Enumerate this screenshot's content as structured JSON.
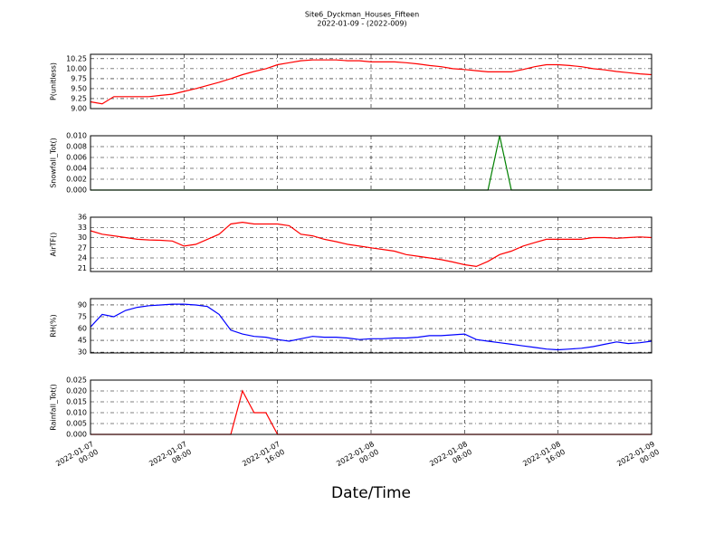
{
  "figure": {
    "title": "Site6_Dyckman_Houses_Fifteen",
    "subtitle": "2022-01-09 - (2022-009)",
    "xlabel": "Date/Time"
  },
  "chart_data": [
    {
      "type": "line",
      "ylabel": "P(unitless)",
      "color": "#ff0000",
      "grid": true,
      "xlim": [
        "2022-01-07 00:00",
        "2022-01-09 00:00"
      ],
      "ylim": [
        9.0,
        10.36
      ],
      "xticks": [
        {
          "value": "2022-01-07 00:00",
          "label": "2022-01-07\n00:00"
        },
        {
          "value": "2022-01-07 08:00",
          "label": "2022-01-07\n08:00"
        },
        {
          "value": "2022-01-07 16:00",
          "label": "2022-01-07\n16:00"
        },
        {
          "value": "2022-01-08 00:00",
          "label": "2022-01-08\n00:00"
        },
        {
          "value": "2022-01-08 08:00",
          "label": "2022-01-08\n08:00"
        },
        {
          "value": "2022-01-08 16:00",
          "label": "2022-01-08\n16:00"
        },
        {
          "value": "2022-01-09 00:00",
          "label": "2022-01-09\n00:00"
        }
      ],
      "yticks": [
        {
          "value": 9,
          "label": "9.00"
        },
        9.25,
        {
          "value": 9.5,
          "label": "9.50"
        },
        9.75,
        {
          "value": 10,
          "label": "10.00"
        },
        10.25
      ],
      "x": [
        "2022-01-07 00:00",
        "2022-01-07 01:00",
        "2022-01-07 02:00",
        "2022-01-07 03:00",
        "2022-01-07 04:00",
        "2022-01-07 05:00",
        "2022-01-07 06:00",
        "2022-01-07 07:00",
        "2022-01-07 08:00",
        "2022-01-07 09:00",
        "2022-01-07 10:00",
        "2022-01-07 11:00",
        "2022-01-07 12:00",
        "2022-01-07 13:00",
        "2022-01-07 14:00",
        "2022-01-07 15:00",
        "2022-01-07 16:00",
        "2022-01-07 17:00",
        "2022-01-07 18:00",
        "2022-01-07 19:00",
        "2022-01-07 20:00",
        "2022-01-07 21:00",
        "2022-01-07 22:00",
        "2022-01-07 23:00",
        "2022-01-08 00:00",
        "2022-01-08 01:00",
        "2022-01-08 02:00",
        "2022-01-08 03:00",
        "2022-01-08 04:00",
        "2022-01-08 05:00",
        "2022-01-08 06:00",
        "2022-01-08 07:00",
        "2022-01-08 08:00",
        "2022-01-08 09:00",
        "2022-01-08 10:00",
        "2022-01-08 11:00",
        "2022-01-08 12:00",
        "2022-01-08 13:00",
        "2022-01-08 14:00",
        "2022-01-08 15:00",
        "2022-01-08 16:00",
        "2022-01-08 17:00",
        "2022-01-08 18:00",
        "2022-01-08 19:00",
        "2022-01-08 20:00",
        "2022-01-08 21:00",
        "2022-01-08 22:00",
        "2022-01-08 23:00",
        "2022-01-09 00:00"
      ],
      "values": [
        9.17,
        9.12,
        9.3,
        9.3,
        9.3,
        9.3,
        9.33,
        9.36,
        9.43,
        9.5,
        9.58,
        9.66,
        9.75,
        9.85,
        9.93,
        10.0,
        10.1,
        10.15,
        10.2,
        10.22,
        10.22,
        10.22,
        10.2,
        10.2,
        10.17,
        10.17,
        10.17,
        10.15,
        10.12,
        10.08,
        10.05,
        10.0,
        9.98,
        9.95,
        9.92,
        9.92,
        9.92,
        9.98,
        10.05,
        10.1,
        10.1,
        10.08,
        10.05,
        10.0,
        9.97,
        9.93,
        9.9,
        9.87,
        9.85
      ]
    },
    {
      "type": "line",
      "ylabel": "Snowfall_Tot()",
      "color": "#008000",
      "grid": true,
      "xlim": [
        "2022-01-07 00:00",
        "2022-01-09 00:00"
      ],
      "ylim": [
        0,
        0.01
      ],
      "xticks": [
        {
          "value": "2022-01-07 00:00",
          "label": "2022-01-07\n00:00"
        },
        {
          "value": "2022-01-07 08:00",
          "label": "2022-01-07\n08:00"
        },
        {
          "value": "2022-01-07 16:00",
          "label": "2022-01-07\n16:00"
        },
        {
          "value": "2022-01-08 00:00",
          "label": "2022-01-08\n00:00"
        },
        {
          "value": "2022-01-08 08:00",
          "label": "2022-01-08\n08:00"
        },
        {
          "value": "2022-01-08 16:00",
          "label": "2022-01-08\n16:00"
        },
        {
          "value": "2022-01-09 00:00",
          "label": "2022-01-09\n00:00"
        }
      ],
      "yticks": [
        {
          "value": 0,
          "label": "0.000"
        },
        0.002,
        0.004,
        0.006,
        0.008,
        {
          "value": 0.01,
          "label": "0.010"
        }
      ],
      "x": [
        "2022-01-07 00:00",
        "2022-01-07 01:00",
        "2022-01-07 02:00",
        "2022-01-07 03:00",
        "2022-01-07 04:00",
        "2022-01-07 05:00",
        "2022-01-07 06:00",
        "2022-01-07 07:00",
        "2022-01-07 08:00",
        "2022-01-07 09:00",
        "2022-01-07 10:00",
        "2022-01-07 11:00",
        "2022-01-07 12:00",
        "2022-01-07 13:00",
        "2022-01-07 14:00",
        "2022-01-07 15:00",
        "2022-01-07 16:00",
        "2022-01-07 17:00",
        "2022-01-07 18:00",
        "2022-01-07 19:00",
        "2022-01-07 20:00",
        "2022-01-07 21:00",
        "2022-01-07 22:00",
        "2022-01-07 23:00",
        "2022-01-08 00:00",
        "2022-01-08 01:00",
        "2022-01-08 02:00",
        "2022-01-08 03:00",
        "2022-01-08 04:00",
        "2022-01-08 05:00",
        "2022-01-08 06:00",
        "2022-01-08 07:00",
        "2022-01-08 08:00",
        "2022-01-08 09:00",
        "2022-01-08 10:00",
        "2022-01-08 11:00",
        "2022-01-08 12:00",
        "2022-01-08 13:00",
        "2022-01-08 14:00",
        "2022-01-08 15:00",
        "2022-01-08 16:00",
        "2022-01-08 17:00",
        "2022-01-08 18:00",
        "2022-01-08 19:00",
        "2022-01-08 20:00",
        "2022-01-08 21:00",
        "2022-01-08 22:00",
        "2022-01-08 23:00",
        "2022-01-09 00:00"
      ],
      "values": [
        0,
        0,
        0,
        0,
        0,
        0,
        0,
        0,
        0,
        0,
        0,
        0,
        0,
        0,
        0,
        0,
        0,
        0,
        0,
        0,
        0,
        0,
        0,
        0,
        0,
        0,
        0,
        0,
        0,
        0,
        0,
        0,
        0,
        0,
        0,
        0.01,
        0,
        0,
        0,
        0,
        0,
        0,
        0,
        0,
        0,
        0,
        0,
        0,
        0
      ]
    },
    {
      "type": "line",
      "ylabel": "AirTF()",
      "color": "#ff0000",
      "grid": true,
      "xlim": [
        "2022-01-07 00:00",
        "2022-01-09 00:00"
      ],
      "ylim": [
        20,
        36
      ],
      "xticks": [
        {
          "value": "2022-01-07 00:00",
          "label": "2022-01-07\n00:00"
        },
        {
          "value": "2022-01-07 08:00",
          "label": "2022-01-07\n08:00"
        },
        {
          "value": "2022-01-07 16:00",
          "label": "2022-01-07\n16:00"
        },
        {
          "value": "2022-01-08 00:00",
          "label": "2022-01-08\n00:00"
        },
        {
          "value": "2022-01-08 08:00",
          "label": "2022-01-08\n08:00"
        },
        {
          "value": "2022-01-08 16:00",
          "label": "2022-01-08\n16:00"
        },
        {
          "value": "2022-01-09 00:00",
          "label": "2022-01-09\n00:00"
        }
      ],
      "yticks": [
        21,
        24,
        27,
        30,
        33,
        36
      ],
      "x": [
        "2022-01-07 00:00",
        "2022-01-07 01:00",
        "2022-01-07 02:00",
        "2022-01-07 03:00",
        "2022-01-07 04:00",
        "2022-01-07 05:00",
        "2022-01-07 06:00",
        "2022-01-07 07:00",
        "2022-01-07 08:00",
        "2022-01-07 09:00",
        "2022-01-07 10:00",
        "2022-01-07 11:00",
        "2022-01-07 12:00",
        "2022-01-07 13:00",
        "2022-01-07 14:00",
        "2022-01-07 15:00",
        "2022-01-07 16:00",
        "2022-01-07 17:00",
        "2022-01-07 18:00",
        "2022-01-07 19:00",
        "2022-01-07 20:00",
        "2022-01-07 21:00",
        "2022-01-07 22:00",
        "2022-01-07 23:00",
        "2022-01-08 00:00",
        "2022-01-08 01:00",
        "2022-01-08 02:00",
        "2022-01-08 03:00",
        "2022-01-08 04:00",
        "2022-01-08 05:00",
        "2022-01-08 06:00",
        "2022-01-08 07:00",
        "2022-01-08 08:00",
        "2022-01-08 09:00",
        "2022-01-08 10:00",
        "2022-01-08 11:00",
        "2022-01-08 12:00",
        "2022-01-08 13:00",
        "2022-01-08 14:00",
        "2022-01-08 15:00",
        "2022-01-08 16:00",
        "2022-01-08 17:00",
        "2022-01-08 18:00",
        "2022-01-08 19:00",
        "2022-01-08 20:00",
        "2022-01-08 21:00",
        "2022-01-08 22:00",
        "2022-01-08 23:00",
        "2022-01-09 00:00"
      ],
      "values": [
        32,
        31,
        30.5,
        30,
        29.5,
        29.3,
        29.2,
        29,
        27.5,
        28,
        29.5,
        31,
        34,
        34.5,
        34,
        34,
        34,
        33.5,
        31,
        30.5,
        29.5,
        28.8,
        28,
        27.5,
        27,
        26.5,
        26,
        25,
        24.5,
        24,
        23.5,
        22.8,
        22,
        21.5,
        23,
        25,
        26,
        27.5,
        28.5,
        29.5,
        29.5,
        29.5,
        29.5,
        30,
        30,
        29.8,
        30,
        30.2,
        30
      ]
    },
    {
      "type": "line",
      "ylabel": "RH(%)",
      "color": "#0000ff",
      "grid": true,
      "xlim": [
        "2022-01-07 00:00",
        "2022-01-09 00:00"
      ],
      "ylim": [
        29,
        98
      ],
      "xticks": [
        {
          "value": "2022-01-07 00:00",
          "label": "2022-01-07\n00:00"
        },
        {
          "value": "2022-01-07 08:00",
          "label": "2022-01-07\n08:00"
        },
        {
          "value": "2022-01-07 16:00",
          "label": "2022-01-07\n16:00"
        },
        {
          "value": "2022-01-08 00:00",
          "label": "2022-01-08\n00:00"
        },
        {
          "value": "2022-01-08 08:00",
          "label": "2022-01-08\n08:00"
        },
        {
          "value": "2022-01-08 16:00",
          "label": "2022-01-08\n16:00"
        },
        {
          "value": "2022-01-09 00:00",
          "label": "2022-01-09\n00:00"
        }
      ],
      "yticks": [
        30,
        45,
        60,
        75,
        90
      ],
      "x": [
        "2022-01-07 00:00",
        "2022-01-07 01:00",
        "2022-01-07 02:00",
        "2022-01-07 03:00",
        "2022-01-07 04:00",
        "2022-01-07 05:00",
        "2022-01-07 06:00",
        "2022-01-07 07:00",
        "2022-01-07 08:00",
        "2022-01-07 09:00",
        "2022-01-07 10:00",
        "2022-01-07 11:00",
        "2022-01-07 12:00",
        "2022-01-07 13:00",
        "2022-01-07 14:00",
        "2022-01-07 15:00",
        "2022-01-07 16:00",
        "2022-01-07 17:00",
        "2022-01-07 18:00",
        "2022-01-07 19:00",
        "2022-01-07 20:00",
        "2022-01-07 21:00",
        "2022-01-07 22:00",
        "2022-01-07 23:00",
        "2022-01-08 00:00",
        "2022-01-08 01:00",
        "2022-01-08 02:00",
        "2022-01-08 03:00",
        "2022-01-08 04:00",
        "2022-01-08 05:00",
        "2022-01-08 06:00",
        "2022-01-08 07:00",
        "2022-01-08 08:00",
        "2022-01-08 09:00",
        "2022-01-08 10:00",
        "2022-01-08 11:00",
        "2022-01-08 12:00",
        "2022-01-08 13:00",
        "2022-01-08 14:00",
        "2022-01-08 15:00",
        "2022-01-08 16:00",
        "2022-01-08 17:00",
        "2022-01-08 18:00",
        "2022-01-08 19:00",
        "2022-01-08 20:00",
        "2022-01-08 21:00",
        "2022-01-08 22:00",
        "2022-01-08 23:00",
        "2022-01-09 00:00"
      ],
      "values": [
        62,
        78,
        75,
        83,
        87,
        89,
        90,
        91,
        91,
        90,
        88,
        78,
        58,
        53,
        50,
        49,
        46,
        44,
        47,
        50,
        49,
        49,
        48,
        46,
        47,
        47,
        48,
        48,
        49,
        51,
        51,
        52,
        53,
        46,
        44,
        42,
        40,
        38,
        36,
        34,
        33,
        34,
        35,
        37,
        40,
        43,
        41,
        42,
        44
      ]
    },
    {
      "type": "line",
      "ylabel": "Rainfall_Tot()",
      "color": "#ff0000",
      "grid": true,
      "xlim": [
        "2022-01-07 00:00",
        "2022-01-09 00:00"
      ],
      "ylim": [
        0,
        0.025
      ],
      "xticks": [
        {
          "value": "2022-01-07 00:00",
          "label": "2022-01-07\n00:00"
        },
        {
          "value": "2022-01-07 08:00",
          "label": "2022-01-07\n08:00"
        },
        {
          "value": "2022-01-07 16:00",
          "label": "2022-01-07\n16:00"
        },
        {
          "value": "2022-01-08 00:00",
          "label": "2022-01-08\n00:00"
        },
        {
          "value": "2022-01-08 08:00",
          "label": "2022-01-08\n08:00"
        },
        {
          "value": "2022-01-08 16:00",
          "label": "2022-01-08\n16:00"
        },
        {
          "value": "2022-01-09 00:00",
          "label": "2022-01-09\n00:00"
        }
      ],
      "yticks": [
        {
          "value": 0,
          "label": "0.000"
        },
        0.005,
        {
          "value": 0.01,
          "label": "0.010"
        },
        0.015,
        {
          "value": 0.02,
          "label": "0.020"
        },
        0.025
      ],
      "x": [
        "2022-01-07 00:00",
        "2022-01-07 01:00",
        "2022-01-07 02:00",
        "2022-01-07 03:00",
        "2022-01-07 04:00",
        "2022-01-07 05:00",
        "2022-01-07 06:00",
        "2022-01-07 07:00",
        "2022-01-07 08:00",
        "2022-01-07 09:00",
        "2022-01-07 10:00",
        "2022-01-07 11:00",
        "2022-01-07 12:00",
        "2022-01-07 13:00",
        "2022-01-07 14:00",
        "2022-01-07 15:00",
        "2022-01-07 16:00",
        "2022-01-07 17:00",
        "2022-01-07 18:00",
        "2022-01-07 19:00",
        "2022-01-07 20:00",
        "2022-01-07 21:00",
        "2022-01-07 22:00",
        "2022-01-07 23:00",
        "2022-01-08 00:00",
        "2022-01-08 01:00",
        "2022-01-08 02:00",
        "2022-01-08 03:00",
        "2022-01-08 04:00",
        "2022-01-08 05:00",
        "2022-01-08 06:00",
        "2022-01-08 07:00",
        "2022-01-08 08:00",
        "2022-01-08 09:00",
        "2022-01-08 10:00",
        "2022-01-08 11:00",
        "2022-01-08 12:00",
        "2022-01-08 13:00",
        "2022-01-08 14:00",
        "2022-01-08 15:00",
        "2022-01-08 16:00",
        "2022-01-08 17:00",
        "2022-01-08 18:00",
        "2022-01-08 19:00",
        "2022-01-08 20:00",
        "2022-01-08 21:00",
        "2022-01-08 22:00",
        "2022-01-08 23:00",
        "2022-01-09 00:00"
      ],
      "values": [
        0,
        0,
        0,
        0,
        0,
        0,
        0,
        0,
        0,
        0,
        0,
        0,
        0,
        0.02,
        0.01,
        0.01,
        0,
        0,
        0,
        0,
        0,
        0,
        0,
        0,
        0,
        0,
        0,
        0,
        0,
        0,
        0,
        0,
        0,
        0,
        0,
        0,
        0,
        0,
        0,
        0,
        0,
        0,
        0,
        0,
        0,
        0,
        0,
        0,
        0
      ]
    }
  ]
}
